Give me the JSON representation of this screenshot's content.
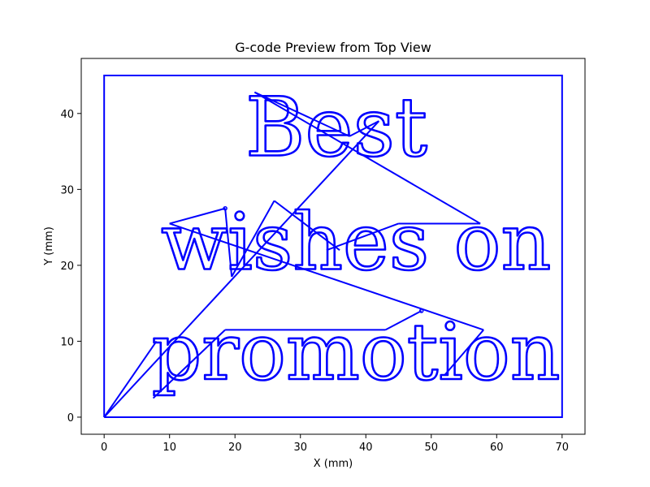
{
  "chart_data": {
    "type": "line",
    "title": "G-code Preview from Top View",
    "xlabel": "X (mm)",
    "ylabel": "Y (mm)",
    "xlim": [
      -3.5,
      73.5
    ],
    "ylim": [
      -2.25,
      47.25
    ],
    "xticks": [
      0,
      10,
      20,
      30,
      40,
      50,
      60,
      70
    ],
    "yticks": [
      0,
      10,
      20,
      30,
      40
    ],
    "grid": false,
    "line_color": "#0000ff",
    "series": [
      {
        "role": "border",
        "x": [
          0,
          70,
          70,
          0,
          0
        ],
        "y": [
          0,
          0,
          45,
          45,
          0
        ]
      },
      {
        "role": "travel-moves",
        "segments": [
          {
            "x": [
              0,
              42
            ],
            "y": [
              0,
              39
            ]
          },
          {
            "x": [
              0,
              8
            ],
            "y": [
              0,
              10
            ]
          },
          {
            "x": [
              7.5,
              18.5
            ],
            "y": [
              2.5,
              11.5
            ]
          },
          {
            "x": [
              18.5,
              43
            ],
            "y": [
              11.5,
              11.5
            ]
          },
          {
            "x": [
              43,
              48.5
            ],
            "y": [
              11.5,
              14
            ]
          },
          {
            "x": [
              10,
              58
            ],
            "y": [
              25.5,
              11.5
            ]
          },
          {
            "x": [
              10,
              18.5
            ],
            "y": [
              25.5,
              27.5
            ]
          },
          {
            "x": [
              18.5,
              19.5
            ],
            "y": [
              27.5,
              18.5
            ]
          },
          {
            "x": [
              19.5,
              26
            ],
            "y": [
              18.5,
              28.5
            ]
          },
          {
            "x": [
              26,
              36
            ],
            "y": [
              28.5,
              22
            ]
          },
          {
            "x": [
              34,
              45
            ],
            "y": [
              22,
              25.5
            ]
          },
          {
            "x": [
              45,
              57.5
            ],
            "y": [
              25.5,
              25.5
            ]
          },
          {
            "x": [
              23,
              57.5
            ],
            "y": [
              42.8,
              25.5
            ]
          },
          {
            "x": [
              23,
              37.5
            ],
            "y": [
              42.8,
              37
            ]
          },
          {
            "x": [
              37.5,
              42
            ],
            "y": [
              37,
              39
            ]
          },
          {
            "x": [
              52,
              58
            ],
            "y": [
              5.5,
              11.5
            ]
          }
        ]
      }
    ],
    "text_paths": [
      {
        "text": "Best",
        "x": 35.5,
        "y": 34.5
      },
      {
        "text": "wishes on",
        "x": 38.5,
        "y": 19.5
      },
      {
        "text": "promotion",
        "x": 38.5,
        "y": 5.0
      }
    ]
  }
}
